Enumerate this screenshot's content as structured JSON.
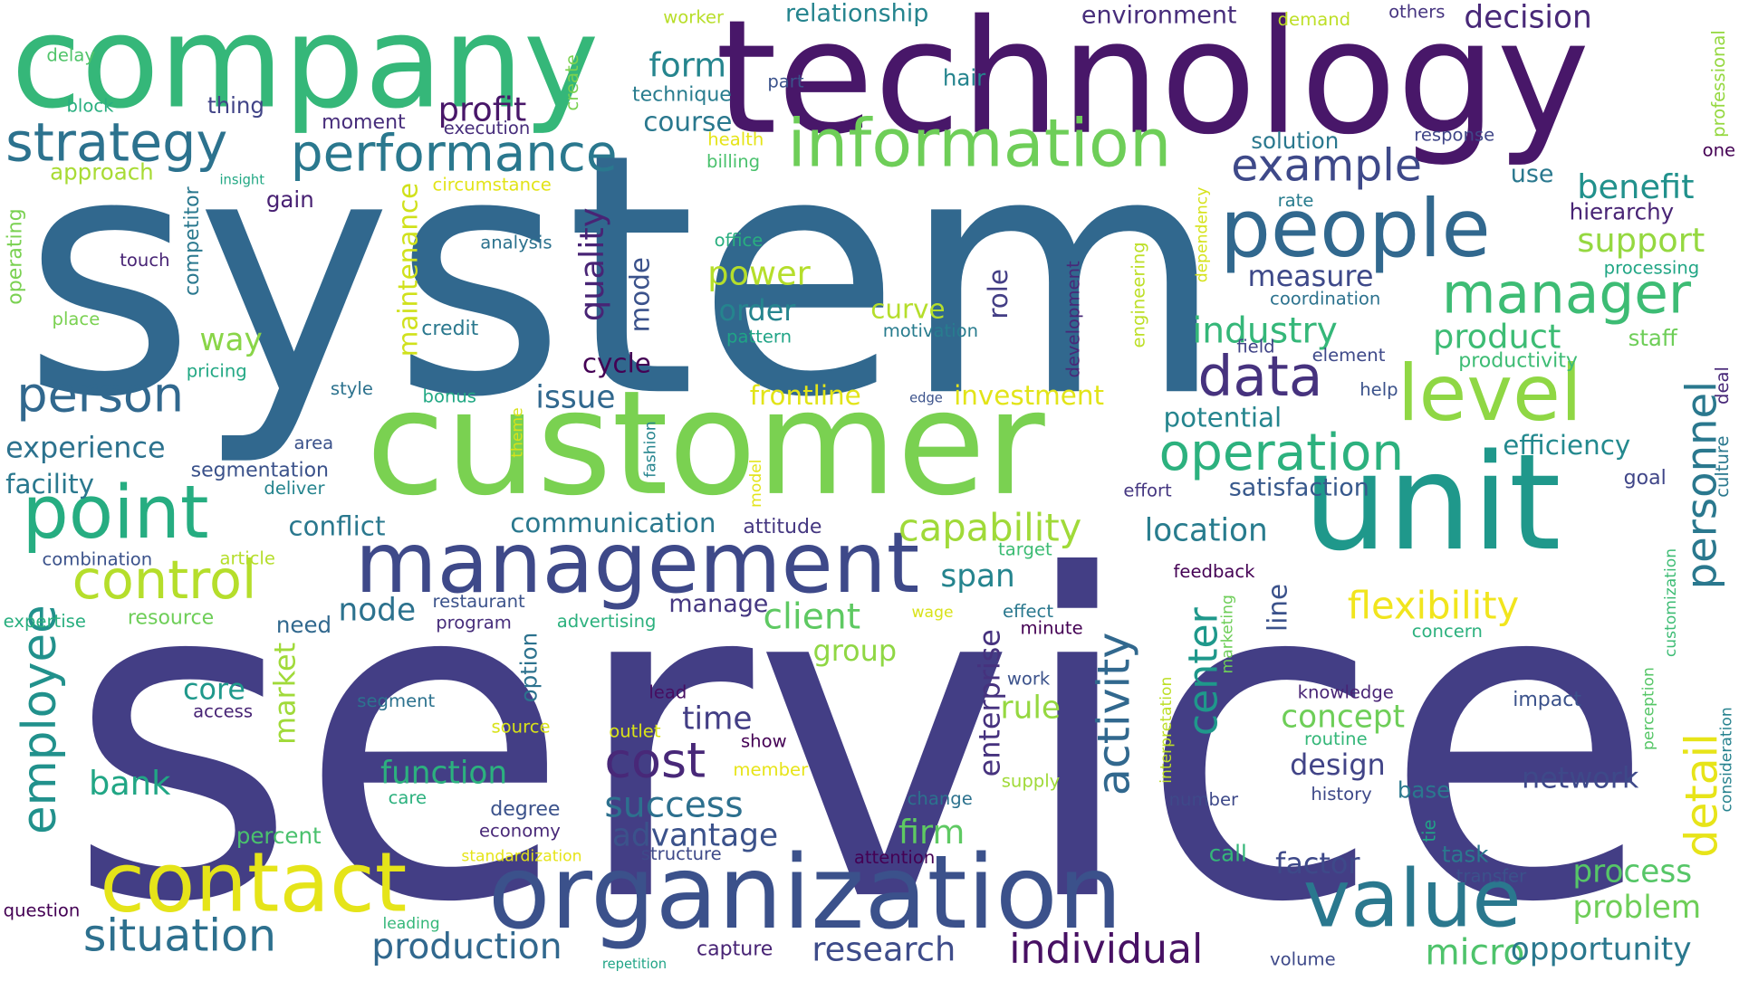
{
  "words": [
    {
      "text": "service",
      "color": "#433e85"
    },
    {
      "text": "system",
      "color": "#31688e"
    },
    {
      "text": "technology",
      "color": "#481769"
    },
    {
      "text": "customer",
      "color": "#7ad151"
    },
    {
      "text": "company",
      "color": "#35b779"
    },
    {
      "text": "unit",
      "color": "#1f988b"
    },
    {
      "text": "organization",
      "color": "#3b518b"
    },
    {
      "text": "management",
      "color": "#3e4989"
    },
    {
      "text": "contact",
      "color": "#e5e419"
    },
    {
      "text": "information",
      "color": "#6ece58"
    },
    {
      "text": "people",
      "color": "#31688e"
    },
    {
      "text": "point",
      "color": "#26ad81"
    },
    {
      "text": "level",
      "color": "#8fd744"
    },
    {
      "text": "value",
      "color": "#2a788e"
    },
    {
      "text": "strategy",
      "color": "#2c728e"
    },
    {
      "text": "performance",
      "color": "#2a788e"
    },
    {
      "text": "example",
      "color": "#3e4989"
    },
    {
      "text": "manager",
      "color": "#3dbc74"
    },
    {
      "text": "data",
      "color": "#46327e"
    },
    {
      "text": "operation",
      "color": "#2cb17e"
    },
    {
      "text": "control",
      "color": "#b5de2b"
    },
    {
      "text": "person",
      "color": "#31688e"
    },
    {
      "text": "situation",
      "color": "#2d708e"
    },
    {
      "text": "cost",
      "color": "#482878"
    },
    {
      "text": "individual",
      "color": "#471063"
    },
    {
      "text": "production",
      "color": "#31688e"
    },
    {
      "text": "research",
      "color": "#3e4c8a"
    },
    {
      "text": "micro",
      "color": "#4ec36b"
    },
    {
      "text": "opportunity",
      "color": "#2a788e"
    },
    {
      "text": "process",
      "color": "#56c667"
    },
    {
      "text": "problem",
      "color": "#6ece58"
    },
    {
      "text": "personnel",
      "color": "#2a788e"
    },
    {
      "text": "detail",
      "color": "#e7e419"
    },
    {
      "text": "employee",
      "color": "#21918c"
    },
    {
      "text": "activity",
      "color": "#31688e"
    },
    {
      "text": "center",
      "color": "#1f988b"
    },
    {
      "text": "flexibility",
      "color": "#f1e51d"
    },
    {
      "text": "capability",
      "color": "#a0da39"
    },
    {
      "text": "success",
      "color": "#2d708e"
    },
    {
      "text": "advantage",
      "color": "#3b528b"
    },
    {
      "text": "client",
      "color": "#5ec962"
    },
    {
      "text": "industry",
      "color": "#35b779"
    },
    {
      "text": "product",
      "color": "#3dbc74"
    },
    {
      "text": "support",
      "color": "#95d840"
    },
    {
      "text": "benefit",
      "color": "#21918c"
    },
    {
      "text": "experience",
      "color": "#2c728e"
    },
    {
      "text": "facility",
      "color": "#2a788e"
    },
    {
      "text": "profit",
      "color": "#481769"
    },
    {
      "text": "form",
      "color": "#25858e"
    },
    {
      "text": "decision",
      "color": "#482878"
    },
    {
      "text": "environment",
      "color": "#472d7b"
    },
    {
      "text": "relationship",
      "color": "#25848e"
    },
    {
      "text": "course",
      "color": "#2a788e"
    },
    {
      "text": "power",
      "color": "#b5de2b"
    },
    {
      "text": "order",
      "color": "#25848e"
    },
    {
      "text": "quality",
      "color": "#482475"
    },
    {
      "text": "mode",
      "color": "#3b528b"
    },
    {
      "text": "maintenance",
      "color": "#d0e11c"
    },
    {
      "text": "way",
      "color": "#89d548"
    },
    {
      "text": "issue",
      "color": "#31688e"
    },
    {
      "text": "node",
      "color": "#2c728e"
    },
    {
      "text": "conflict",
      "color": "#2a788e"
    },
    {
      "text": "communication",
      "color": "#2a788e"
    },
    {
      "text": "frontline",
      "color": "#e2e418"
    },
    {
      "text": "investment",
      "color": "#e2e418"
    },
    {
      "text": "potential",
      "color": "#25858e"
    },
    {
      "text": "satisfaction",
      "color": "#38598c"
    },
    {
      "text": "efficiency",
      "color": "#23898e"
    },
    {
      "text": "location",
      "color": "#287c8e"
    },
    {
      "text": "span",
      "color": "#25848e"
    },
    {
      "text": "market",
      "color": "#a0da39"
    },
    {
      "text": "time",
      "color": "#433e85"
    },
    {
      "text": "design",
      "color": "#414487"
    },
    {
      "text": "concept",
      "color": "#6ece58"
    },
    {
      "text": "function",
      "color": "#2cb17e"
    },
    {
      "text": "bank",
      "color": "#21a685"
    },
    {
      "text": "firm",
      "color": "#5ec962"
    },
    {
      "text": "enterprise",
      "color": "#46327e"
    },
    {
      "text": "rule",
      "color": "#95d840"
    },
    {
      "text": "network",
      "color": "#3e4989"
    },
    {
      "text": "factor",
      "color": "#3e4989"
    },
    {
      "text": "line",
      "color": "#3b528b"
    },
    {
      "text": "measure",
      "color": "#3e4989"
    },
    {
      "text": "role",
      "color": "#433e85"
    },
    {
      "text": "curve",
      "color": "#b5de2b"
    },
    {
      "text": "core",
      "color": "#1f988b"
    },
    {
      "text": "cycle",
      "color": "#440154"
    },
    {
      "text": "group",
      "color": "#8fd744"
    },
    {
      "text": "manage",
      "color": "#453781"
    },
    {
      "text": "use",
      "color": "#2a788e"
    },
    {
      "text": "hierarchy",
      "color": "#482475"
    },
    {
      "text": "solution",
      "color": "#2a788e"
    },
    {
      "text": "gain",
      "color": "#482173"
    },
    {
      "text": "thing",
      "color": "#414487"
    },
    {
      "text": "approach",
      "color": "#a8db34"
    },
    {
      "text": "block",
      "color": "#29af7f"
    },
    {
      "text": "delay",
      "color": "#50c46a"
    },
    {
      "text": "worker",
      "color": "#b8de29"
    },
    {
      "text": "demand",
      "color": "#bddf26"
    },
    {
      "text": "others",
      "color": "#463480"
    },
    {
      "text": "professional",
      "color": "#95d840"
    },
    {
      "text": "one",
      "color": "#440154"
    },
    {
      "text": "response",
      "color": "#404688"
    },
    {
      "text": "technique",
      "color": "#287c8e"
    },
    {
      "text": "part",
      "color": "#3b528b"
    },
    {
      "text": "hair",
      "color": "#25848e"
    },
    {
      "text": "create",
      "color": "#7ad151"
    },
    {
      "text": "moment",
      "color": "#472d7b"
    },
    {
      "text": "execution",
      "color": "#472d7b"
    },
    {
      "text": "health",
      "color": "#e5e419"
    },
    {
      "text": "billing",
      "color": "#4ac16d"
    },
    {
      "text": "insight",
      "color": "#22a884"
    },
    {
      "text": "circumstance",
      "color": "#e2e418"
    },
    {
      "text": "competitor",
      "color": "#2a788e"
    },
    {
      "text": "operating",
      "color": "#7ad151"
    },
    {
      "text": "touch",
      "color": "#482475"
    },
    {
      "text": "place",
      "color": "#7ad151"
    },
    {
      "text": "analysis",
      "color": "#2c728e"
    },
    {
      "text": "office",
      "color": "#29af7f"
    },
    {
      "text": "credit",
      "color": "#2a788e"
    },
    {
      "text": "pattern",
      "color": "#20a486"
    },
    {
      "text": "motivation",
      "color": "#287c8e"
    },
    {
      "text": "dependency",
      "color": "#d5e21a"
    },
    {
      "text": "engineering",
      "color": "#bddf26"
    },
    {
      "text": "development",
      "color": "#482878"
    },
    {
      "text": "rate",
      "color": "#287c8e"
    },
    {
      "text": "coordination",
      "color": "#2c728e"
    },
    {
      "text": "processing",
      "color": "#21a685"
    },
    {
      "text": "staff",
      "color": "#6ece58"
    },
    {
      "text": "productivity",
      "color": "#3dbc74"
    },
    {
      "text": "field",
      "color": "#414487"
    },
    {
      "text": "element",
      "color": "#3e4989"
    },
    {
      "text": "deal",
      "color": "#482878"
    },
    {
      "text": "culture",
      "color": "#2a788e"
    },
    {
      "text": "goal",
      "color": "#404688"
    },
    {
      "text": "help",
      "color": "#3b528b"
    },
    {
      "text": "effort",
      "color": "#453781"
    },
    {
      "text": "edge",
      "color": "#3b528b"
    },
    {
      "text": "bonus",
      "color": "#22a884"
    },
    {
      "text": "style",
      "color": "#2c728e"
    },
    {
      "text": "pricing",
      "color": "#22a884"
    },
    {
      "text": "area",
      "color": "#3b528b"
    },
    {
      "text": "segmentation",
      "color": "#3b528b"
    },
    {
      "text": "deliver",
      "color": "#25848e"
    },
    {
      "text": "theme",
      "color": "#d8e219"
    },
    {
      "text": "fashion",
      "color": "#25848e"
    },
    {
      "text": "model",
      "color": "#e2e418"
    },
    {
      "text": "attitude",
      "color": "#453781"
    },
    {
      "text": "target",
      "color": "#3dbc74"
    },
    {
      "text": "feedback",
      "color": "#440154"
    },
    {
      "text": "article",
      "color": "#b5de2b"
    },
    {
      "text": "combination",
      "color": "#3b528b"
    },
    {
      "text": "expertise",
      "color": "#29af7f"
    },
    {
      "text": "resource",
      "color": "#6ece58"
    },
    {
      "text": "need",
      "color": "#31688e"
    },
    {
      "text": "restaurant",
      "color": "#3b528b"
    },
    {
      "text": "program",
      "color": "#472d7b"
    },
    {
      "text": "option",
      "color": "#2c728e"
    },
    {
      "text": "advertising",
      "color": "#2cb17e"
    },
    {
      "text": "wage",
      "color": "#d8e219"
    },
    {
      "text": "effect",
      "color": "#2a788e"
    },
    {
      "text": "minute",
      "color": "#440154"
    },
    {
      "text": "marketing",
      "color": "#6ece58"
    },
    {
      "text": "concern",
      "color": "#2cb17e"
    },
    {
      "text": "customization",
      "color": "#3dbc74"
    },
    {
      "text": "perception",
      "color": "#56c667"
    },
    {
      "text": "consideration",
      "color": "#26828e"
    },
    {
      "text": "impact",
      "color": "#3b528b"
    },
    {
      "text": "knowledge",
      "color": "#482475"
    },
    {
      "text": "routine",
      "color": "#35b779"
    },
    {
      "text": "interpretation",
      "color": "#bddf26"
    },
    {
      "text": "work",
      "color": "#3b528b"
    },
    {
      "text": "supply",
      "color": "#a0da39"
    },
    {
      "text": "lead",
      "color": "#470e61"
    },
    {
      "text": "segment",
      "color": "#2c728e"
    },
    {
      "text": "access",
      "color": "#482475"
    },
    {
      "text": "source",
      "color": "#d8e219"
    },
    {
      "text": "outlet",
      "color": "#d8e219"
    },
    {
      "text": "show",
      "color": "#440154"
    },
    {
      "text": "member",
      "color": "#e7e419"
    },
    {
      "text": "care",
      "color": "#2cb17e"
    },
    {
      "text": "degree",
      "color": "#3b528b"
    },
    {
      "text": "economy",
      "color": "#482878"
    },
    {
      "text": "percent",
      "color": "#4ac16d"
    },
    {
      "text": "change",
      "color": "#2c728e"
    },
    {
      "text": "number",
      "color": "#3e4989"
    },
    {
      "text": "history",
      "color": "#3e4989"
    },
    {
      "text": "base",
      "color": "#2a788e"
    },
    {
      "text": "tie",
      "color": "#20a486"
    },
    {
      "text": "task",
      "color": "#2a788e"
    },
    {
      "text": "transfer",
      "color": "#3b528b"
    },
    {
      "text": "call",
      "color": "#35b779"
    },
    {
      "text": "standardization",
      "color": "#e5e419"
    },
    {
      "text": "structure",
      "color": "#3e4989"
    },
    {
      "text": "attention",
      "color": "#440154"
    },
    {
      "text": "question",
      "color": "#440154"
    },
    {
      "text": "leading",
      "color": "#35b779"
    },
    {
      "text": "capture",
      "color": "#482475"
    },
    {
      "text": "repetition",
      "color": "#20a486"
    },
    {
      "text": "volume",
      "color": "#3e4989"
    }
  ]
}
